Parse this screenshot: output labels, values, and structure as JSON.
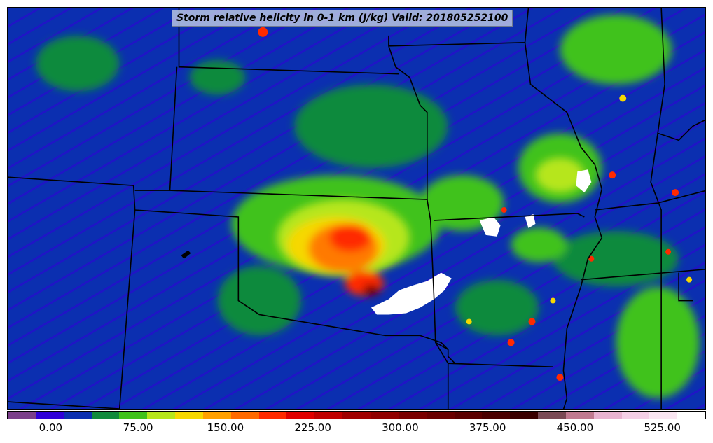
{
  "title": "Storm relative helicity in 0-1 km (J/kg) Valid: 201805252100",
  "colors": {
    "background_field": "#0b2fb0",
    "low": "#2f00d8",
    "green_dark": "#118a3c",
    "green": "#3fc21a",
    "yellow_green": "#b6e61a",
    "yellow": "#f6d800",
    "orange": "#ff7a00",
    "red": "#ff2a00",
    "dark_red": "#c80000",
    "maroon": "#7a0000",
    "white_extreme": "#ffffff",
    "borders": "#000000"
  },
  "colorbar": {
    "segments": [
      "#7b3f8a",
      "#2f00d8",
      "#0b2fb0",
      "#118a3c",
      "#3fc21a",
      "#b6e61a",
      "#f6d800",
      "#ffa000",
      "#ff6a00",
      "#ff2a00",
      "#e00000",
      "#c00000",
      "#a00000",
      "#900000",
      "#7a0000",
      "#6a0000",
      "#5a0000",
      "#4a0000",
      "#3a0000",
      "#7a4a55",
      "#c07a90",
      "#e8b3d0",
      "#f4cfe6",
      "#fae6f2",
      "#ffffff"
    ],
    "tick_labels": [
      "0.00",
      "75.00",
      "150.00",
      "225.00",
      "300.00",
      "375.00",
      "450.00",
      "525.00"
    ]
  },
  "chart_data": {
    "type": "heatmap",
    "title": "Storm relative helicity in 0-1 km (J/kg) Valid: 201805252100",
    "colorbar_ticks": [
      0,
      75,
      150,
      225,
      300,
      375,
      450,
      525
    ],
    "colorbar_range": [
      -37.5,
      562.5
    ]
  }
}
